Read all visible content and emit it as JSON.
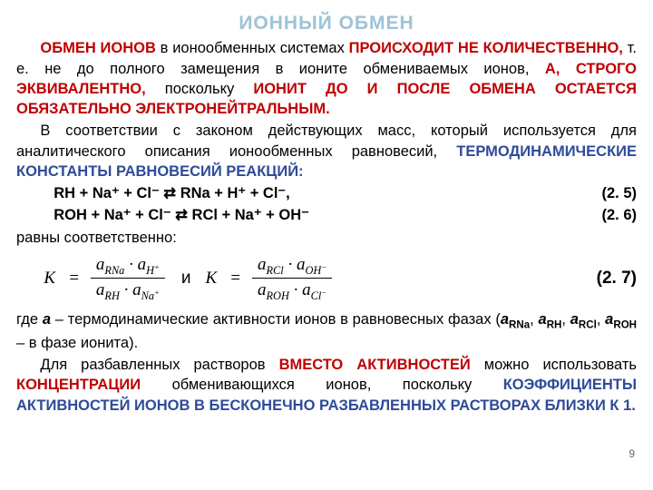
{
  "title": "ИОННЫЙ ОБМЕН",
  "colors": {
    "title": "#9dc3d6",
    "emphasis_red": "#c00000",
    "emphasis_blue": "#2e4b9a",
    "text": "#000000",
    "background": "#ffffff"
  },
  "fonts": {
    "body": "Arial",
    "body_size_pt": 12,
    "title_size_pt": 16,
    "formula_family": "Times New Roman"
  },
  "p1": {
    "s1a": "ОБМЕН ИОНОВ",
    "s1b": " в ионообменных системах ",
    "s1c": "ПРОИСХОДИТ НЕ КОЛИЧЕСТВЕННО,",
    "s1d": " т. е. не до полного замещения в ионите обмениваемых ионов, ",
    "s1e": "А, СТРОГО ЭКВИВАЛЕНТНО,",
    "s1f": " поскольку ",
    "s1g": "ИОНИТ ДО И ПОСЛЕ ОБМЕНА ОСТАЕТСЯ ОБЯЗАТЕЛЬНО ЭЛЕКТРОНЕЙТРАЛЬНЫМ."
  },
  "p2": {
    "s1": "В соответствии с законом действующих масс, который используется для аналитического описания ионообменных равновесий, ",
    "s2": "ТЕРМОДИНАМИЧЕСКИЕ КОНСТАНТЫ РАВНОВЕСИЙ РЕАКЦИЙ:"
  },
  "eq1": {
    "text": "RH + Na⁺ + Cl⁻ ⇄ RNa + H⁺ + Cl⁻,",
    "num": "(2. 5)"
  },
  "eq2": {
    "text": "ROH + Na⁺ + Cl⁻ ⇄ RCl + Na⁺ + OH⁻",
    "num": "(2. 6)"
  },
  "p3": "равны соответственно:",
  "formula": {
    "K": "K",
    "eq": "=",
    "and": "и",
    "f1": {
      "num_a1": "a",
      "num_s1": "RNa",
      "num_dot": " · ",
      "num_a2": "a",
      "num_s2": "H",
      "num_sup2": "+",
      "den_a1": "a",
      "den_s1": "RH",
      "den_dot": " · ",
      "den_a2": "a",
      "den_s2": "Na",
      "den_sup2": "+"
    },
    "f2": {
      "num_a1": "a",
      "num_s1": "RCl",
      "num_dot": " · ",
      "num_a2": "a",
      "num_s2": "OH",
      "num_sup2": "−",
      "den_a1": "a",
      "den_s1": "ROH",
      "den_dot": " · ",
      "den_a2": "a",
      "den_s2": "Cl",
      "den_sup2": "−"
    },
    "num": "(2. 7)"
  },
  "p4": {
    "s1": "где ",
    "s2": "a",
    "s3": " – термодинамические активности ионов в равновесных фазах (",
    "s4": "a",
    "s4sub": "RNa",
    "s5": ", ",
    "s6": "a",
    "s6sub": "RH",
    "s7": ", ",
    "s8": "a",
    "s8sub": "RCl",
    "s85": ", ",
    "s9": "a",
    "s9sub": "ROH",
    "s10": " – в фазе ионита)."
  },
  "p5": {
    "s1": "Для разбавленных растворов ",
    "s2": "ВМЕСТО АКТИВНОСТЕЙ",
    "s3": " можно использовать ",
    "s4": "КОНЦЕНТРАЦИИ",
    "s5": " обменивающихся ионов, поскольку ",
    "s6": "КОЭФФИЦИЕНТЫ АКТИВНОСТЕЙ ИОНОВ В БЕСКОНЕЧНО РАЗБАВЛЕННЫХ РАСТВОРАХ БЛИЗКИ К 1."
  },
  "page_number": "9"
}
